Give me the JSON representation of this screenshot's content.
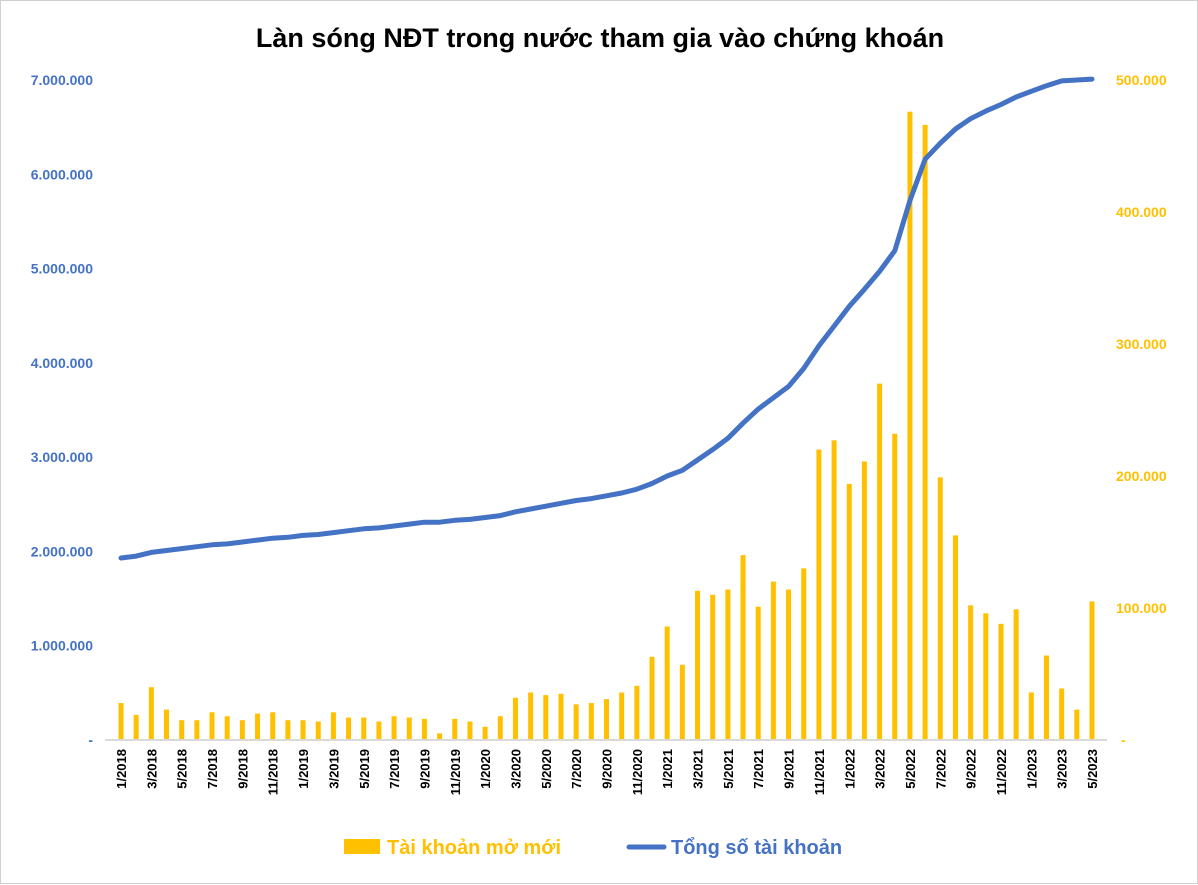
{
  "chart_data": {
    "type": "bar+line",
    "title": "Làn sóng NĐT trong nước tham gia vào chứng khoán",
    "start_month": 1,
    "start_year": 2018,
    "x_tick_labels": [
      "1/2018",
      "3/2018",
      "5/2018",
      "7/2018",
      "9/2018",
      "11/2018",
      "1/2019",
      "3/2019",
      "5/2019",
      "7/2019",
      "9/2019",
      "11/2019",
      "1/2020",
      "3/2020",
      "5/2020",
      "7/2020",
      "9/2020",
      "11/2020",
      "1/2021",
      "3/2021",
      "5/2021",
      "7/2021",
      "9/2021",
      "11/2021",
      "1/2022",
      "3/2022",
      "5/2022",
      "7/2022",
      "9/2022",
      "11/2022",
      "1/2023",
      "3/2023",
      "5/2023"
    ],
    "left_axis": {
      "ylim": [
        0,
        7000000
      ],
      "tick_labels": [
        "-",
        "1.000.000",
        "2.000.000",
        "3.000.000",
        "4.000.000",
        "5.000.000",
        "6.000.000",
        "7.000.000"
      ]
    },
    "right_axis": {
      "ylim": [
        0,
        500000
      ],
      "tick_labels": [
        "-",
        "100.000",
        "200.000",
        "300.000",
        "400.000",
        "500.000"
      ]
    },
    "series": [
      {
        "name": "Tài khoản mở mới",
        "type": "bar",
        "axis": "right",
        "color": "#FFC000",
        "values": [
          28000,
          19000,
          40000,
          23000,
          15000,
          15000,
          21000,
          18000,
          15000,
          20000,
          21000,
          15000,
          15000,
          14000,
          21000,
          17000,
          17000,
          14000,
          18000,
          17000,
          16000,
          5000,
          16000,
          14000,
          10000,
          18000,
          32000,
          36000,
          34000,
          35000,
          27000,
          28000,
          31000,
          36000,
          41000,
          63000,
          86000,
          57000,
          113000,
          110000,
          114000,
          140000,
          101000,
          120000,
          114000,
          130000,
          220000,
          227000,
          194000,
          211000,
          270000,
          232000,
          476000,
          466000,
          199000,
          155000,
          102000,
          96000,
          88000,
          99000,
          36000,
          64000,
          39000,
          23000,
          105000
        ]
      },
      {
        "name": "Tổng số tài khoản",
        "type": "line",
        "axis": "left",
        "color": "#4472C4",
        "values": [
          1930000,
          1950000,
          1990000,
          2010000,
          2030000,
          2050000,
          2070000,
          2080000,
          2100000,
          2120000,
          2140000,
          2150000,
          2170000,
          2180000,
          2200000,
          2220000,
          2240000,
          2250000,
          2270000,
          2290000,
          2310000,
          2310000,
          2330000,
          2340000,
          2360000,
          2380000,
          2420000,
          2450000,
          2480000,
          2510000,
          2540000,
          2560000,
          2590000,
          2620000,
          2660000,
          2720000,
          2800000,
          2860000,
          2970000,
          3080000,
          3200000,
          3360000,
          3510000,
          3630000,
          3750000,
          3940000,
          4180000,
          4390000,
          4600000,
          4780000,
          4970000,
          5190000,
          5720000,
          6160000,
          6330000,
          6480000,
          6590000,
          6670000,
          6740000,
          6820000,
          6880000,
          6940000,
          6990000,
          7000000,
          7010000
        ]
      }
    ],
    "legend_position": "bottom"
  }
}
